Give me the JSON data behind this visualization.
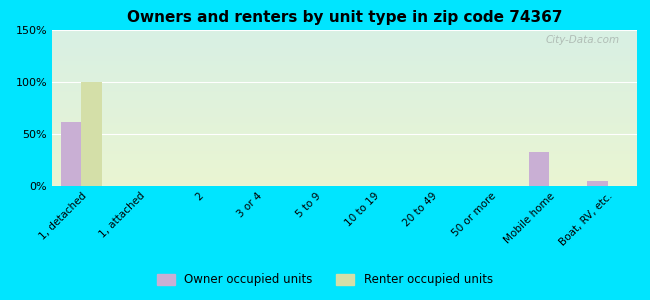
{
  "title": "Owners and renters by unit type in zip code 74367",
  "categories": [
    "1, detached",
    "1, attached",
    "2",
    "3 or 4",
    "5 to 9",
    "10 to 19",
    "20 to 49",
    "50 or more",
    "Mobile home",
    "Boat, RV, etc."
  ],
  "owner_values": [
    62,
    0,
    0,
    0,
    0,
    0,
    0,
    0,
    33,
    5
  ],
  "renter_values": [
    100,
    0,
    0,
    0,
    0,
    0,
    0,
    0,
    0,
    0
  ],
  "owner_color": "#c9afd4",
  "renter_color": "#d4dfa8",
  "background_outer": "#00e5ff",
  "background_plot_top": "#d8f0e4",
  "background_plot_bottom": "#eaf5d2",
  "ylim": [
    0,
    150
  ],
  "yticks": [
    0,
    50,
    100,
    150
  ],
  "ytick_labels": [
    "0%",
    "50%",
    "100%",
    "150%"
  ],
  "bar_width": 0.35,
  "legend_labels": [
    "Owner occupied units",
    "Renter occupied units"
  ],
  "watermark": "City-Data.com"
}
